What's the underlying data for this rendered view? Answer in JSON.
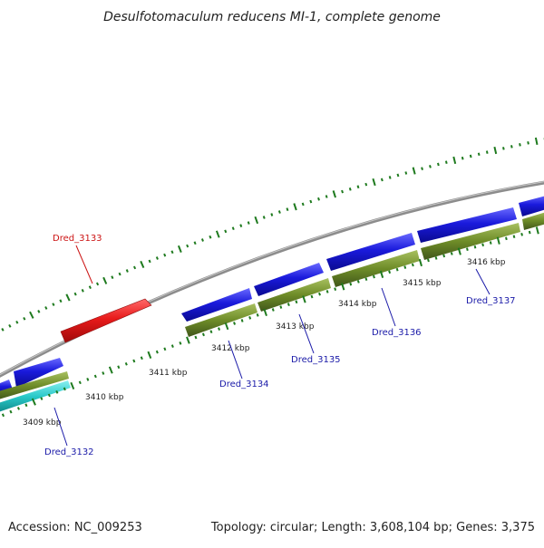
{
  "title": "Desulfotomaculum reducens MI-1, complete genome",
  "footer": {
    "accession": "Accession: NC_009253",
    "summary": "Topology: circular; Length: 3,608,104 bp; Genes: 3,375"
  },
  "colors": {
    "backbone": "#8c8c8c",
    "forward_cds": "#1a1adc",
    "highlight_cds": "#e81b1b",
    "gene_bar": "#6e8c28",
    "rna_bar": "#28c8c8",
    "ticks": "#1e7a1e",
    "label_blue": "#1a1aa8",
    "label_red": "#cc1414"
  },
  "kbp_labels": [
    "3409 kbp",
    "3410 kbp",
    "3411 kbp",
    "3412 kbp",
    "3413 kbp",
    "3414 kbp",
    "3415 kbp",
    "3416 kbp"
  ],
  "gene_labels": [
    {
      "id": "dred-3132",
      "text": "Dred_3132",
      "color": "blue"
    },
    {
      "id": "dred-3133",
      "text": "Dred_3133",
      "color": "red"
    },
    {
      "id": "dred-3134",
      "text": "Dred_3134",
      "color": "blue"
    },
    {
      "id": "dred-3135",
      "text": "Dred_3135",
      "color": "blue"
    },
    {
      "id": "dred-3136",
      "text": "Dred_3136",
      "color": "blue"
    },
    {
      "id": "dred-3137",
      "text": "Dred_3137",
      "color": "blue"
    }
  ]
}
